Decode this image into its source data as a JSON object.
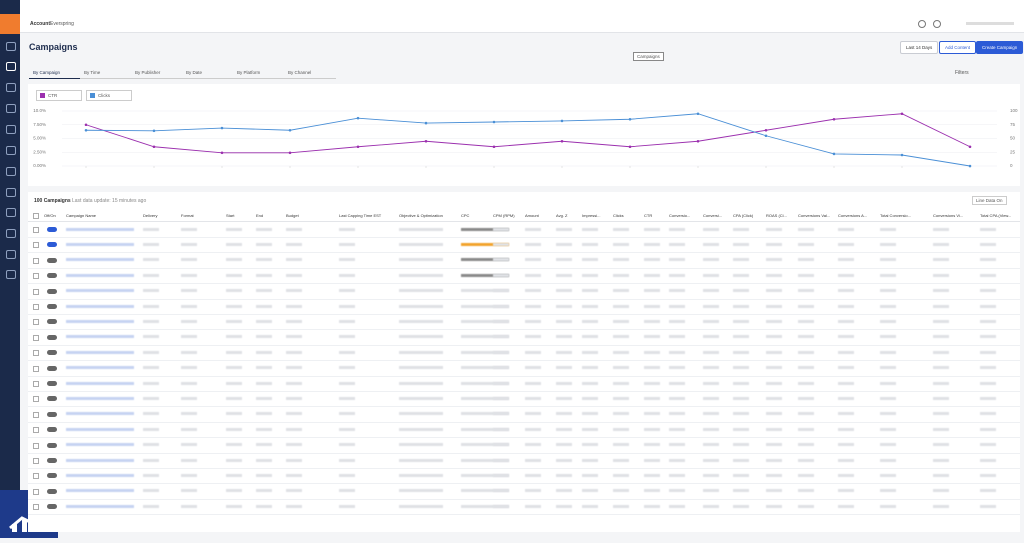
{
  "header": {
    "account_label": "Account:",
    "account": "Everspring"
  },
  "page": {
    "title": "Campaigns",
    "tooltip": "Campaigns",
    "buttons": [
      "Last 14 Days",
      "Add Content",
      "Create Campaign"
    ]
  },
  "tabs": [
    "By Campaign",
    "By Time",
    "By Publisher",
    "By Date",
    "By Platform",
    "By Channel"
  ],
  "toolbar": {
    "filters": "Filters"
  },
  "chart_data": {
    "type": "line",
    "categories": [
      null,
      null,
      null,
      null,
      null,
      null,
      null,
      null,
      null,
      null,
      null,
      null,
      null,
      null
    ],
    "series": [
      {
        "name": "CTR",
        "color": "#9b2fae",
        "values": [
          7.5,
          3.5,
          2.4,
          2.4,
          3.5,
          4.5,
          3.5,
          4.5,
          3.5,
          4.5,
          6.5,
          8.5,
          9.5,
          3.5
        ]
      },
      {
        "name": "Clicks",
        "color": "#4a8fd6",
        "axis": "y2",
        "values": [
          65,
          64,
          69,
          65,
          87,
          78,
          80,
          82,
          85,
          95,
          55,
          22,
          20,
          0
        ]
      }
    ],
    "ylim": [
      0,
      10
    ],
    "yticks": [
      {
        "value": 0,
        "label": "0.00%"
      },
      {
        "value": 2.5,
        "label": "2.50%"
      },
      {
        "value": 5,
        "label": "5.00%"
      },
      {
        "value": 7.5,
        "label": "7.50%"
      },
      {
        "value": 10,
        "label": "10.0%"
      }
    ],
    "y2lim": [
      0,
      100
    ],
    "y2ticks": [
      0,
      25,
      50,
      75,
      100
    ],
    "grid": true
  },
  "table": {
    "count": "100 Campaigns",
    "updated": "Last data update: 15 minutes ago",
    "toggle": "Line Data On",
    "columns": [
      "Off/On",
      "Campaign Name",
      "Delivery",
      "Format",
      "Start",
      "End",
      "Budget",
      "Last Capping Time EST",
      "Objective & Optimization",
      "CPC",
      "CPM (RPM)",
      "Amount",
      "Avg. Z",
      "Impressi...",
      "Clicks",
      "CTR",
      "Conversio...",
      "Conversi...",
      "CPA (Click)",
      "ROAS (Cl...",
      "Conversions Val...",
      "Conversions A...",
      "Total Conversio...",
      "Conversions Vi...",
      "Total CPA (View..."
    ]
  }
}
